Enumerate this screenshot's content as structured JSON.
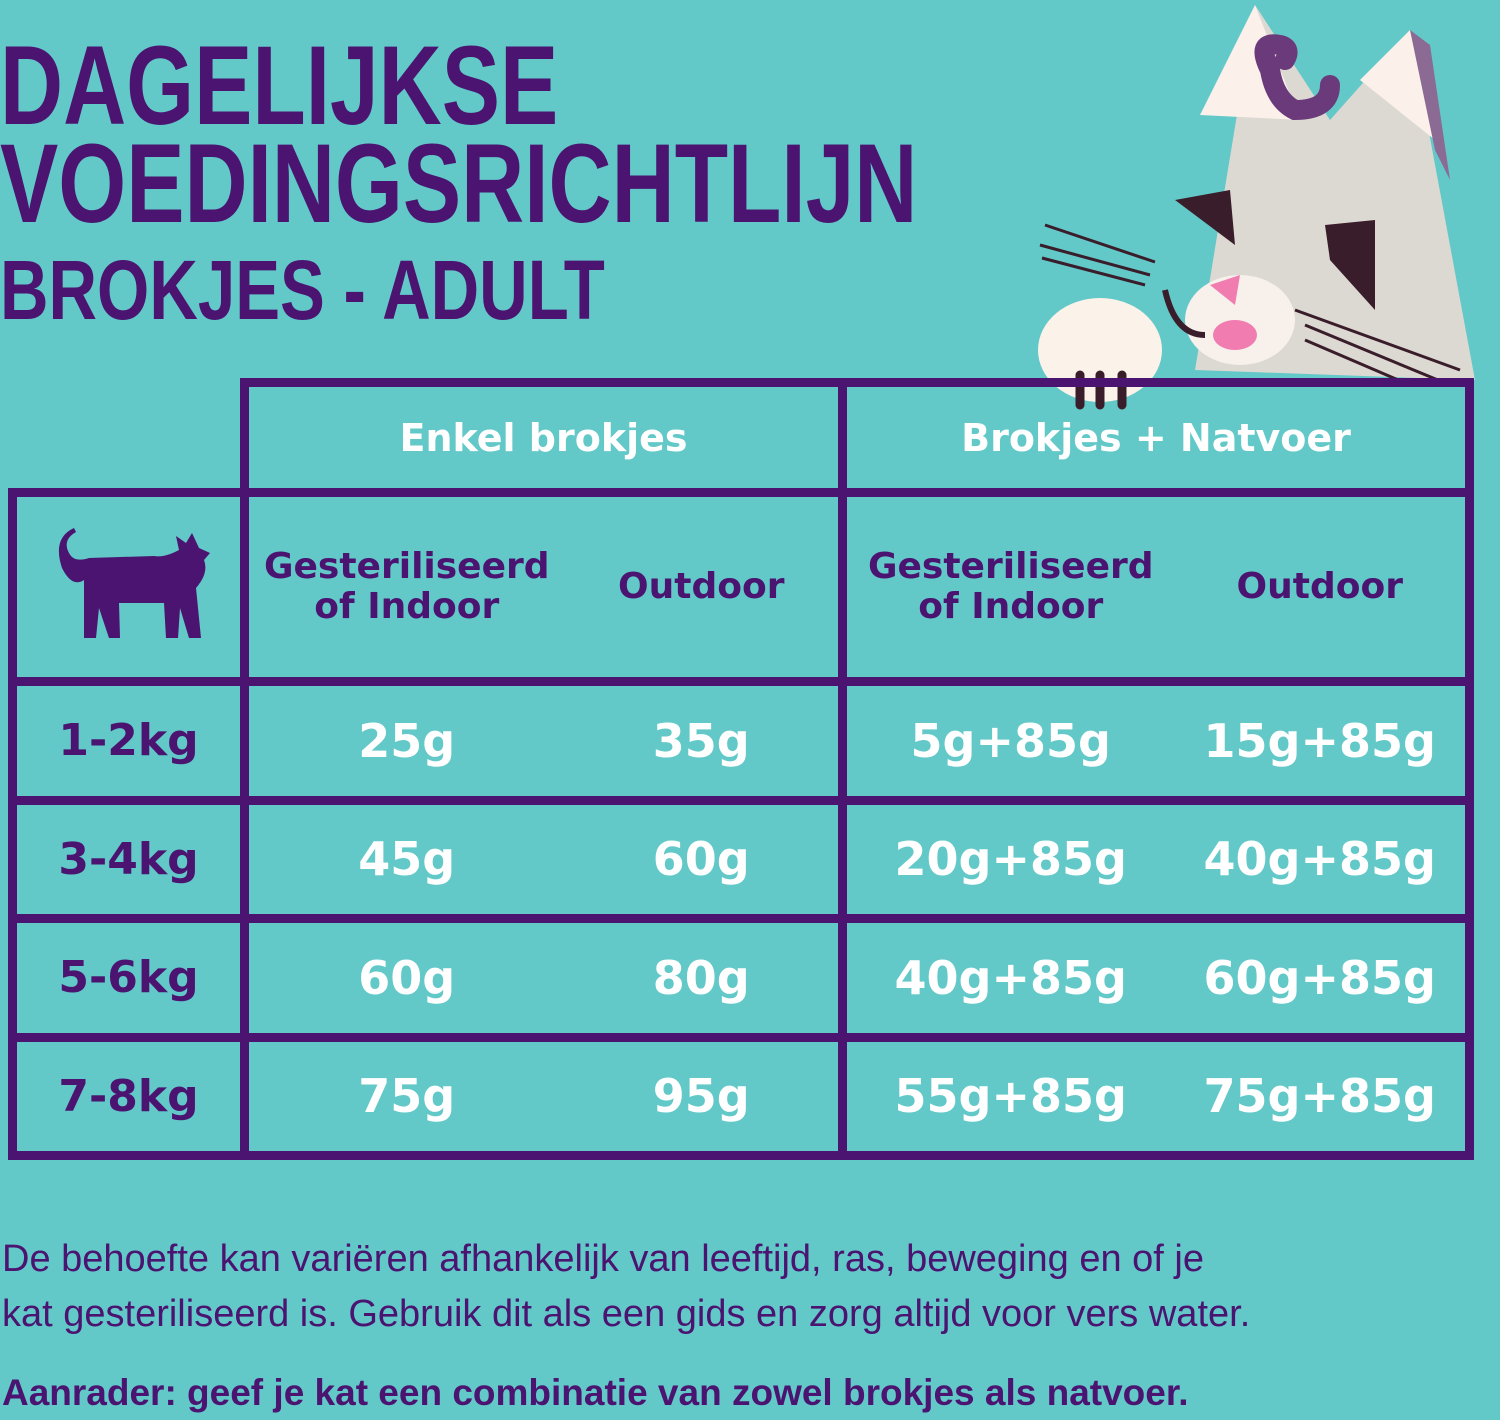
{
  "title": {
    "line1": "DAGELIJKSE",
    "line2": "VOEDINGSRICHTLIJN",
    "subtitle": "BROKJES - ADULT"
  },
  "colors": {
    "background": "#62c8c8",
    "primary": "#4a1470",
    "value_text": "#ffffff"
  },
  "illustration": "cat-peeking-over-table",
  "logo_glyph": "&",
  "table": {
    "groups": [
      "Enkel brokjes",
      "Brokjes + Natvoer"
    ],
    "corner_icon": "cat-silhouette-icon",
    "subheaders": [
      [
        "Gesteriliseerd",
        "of Indoor"
      ],
      [
        "Outdoor"
      ],
      [
        "Gesteriliseerd",
        "of Indoor"
      ],
      [
        "Outdoor"
      ]
    ],
    "rows": [
      {
        "weight": "1-2kg",
        "values": [
          "25g",
          "35g",
          "5g+85g",
          "15g+85g"
        ]
      },
      {
        "weight": "3-4kg",
        "values": [
          "45g",
          "60g",
          "20g+85g",
          "40g+85g"
        ]
      },
      {
        "weight": "5-6kg",
        "values": [
          "60g",
          "80g",
          "40g+85g",
          "60g+85g"
        ]
      },
      {
        "weight": "7-8kg",
        "values": [
          "75g",
          "95g",
          "55g+85g",
          "75g+85g"
        ]
      }
    ]
  },
  "notes": {
    "line1": "De behoefte kan variëren afhankelijk van leeftijd, ras, beweging en of je",
    "line2": "kat gesteriliseerd is. Gebruik dit als een gids en zorg altijd voor vers water.",
    "advice": "Aanrader: geef je kat een combinatie van zowel brokjes als natvoer."
  }
}
